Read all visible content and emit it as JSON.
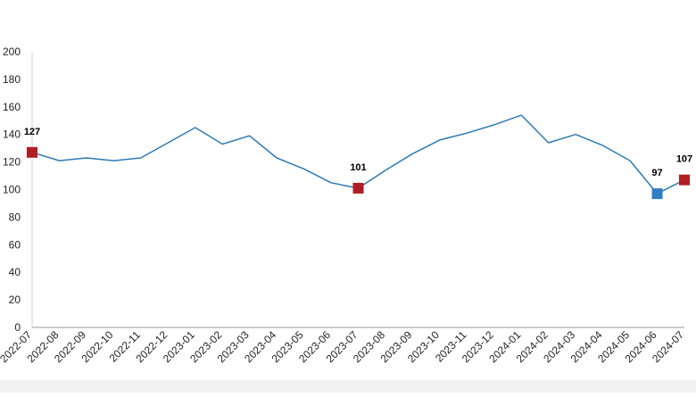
{
  "chart_data": {
    "type": "line",
    "title": "",
    "xlabel": "",
    "ylabel": "",
    "ylim": [
      0,
      200
    ],
    "yticks": [
      0,
      20,
      40,
      60,
      80,
      100,
      120,
      140,
      160,
      180,
      200
    ],
    "grid": false,
    "legend": "none",
    "categories": [
      "2022-07",
      "2022-08",
      "2022-09",
      "2022-10",
      "2022-11",
      "2022-12",
      "2023-01",
      "2023-02",
      "2023-03",
      "2023-04",
      "2023-05",
      "2023-06",
      "2023-07",
      "2023-08",
      "2023-09",
      "2023-10",
      "2023-11",
      "2023-12",
      "2024-01",
      "2024-02",
      "2024-03",
      "2024-04",
      "2024-05",
      "2024-06",
      "2024-07"
    ],
    "series": [
      {
        "values": [
          127,
          121,
          123,
          121,
          123,
          134,
          145,
          133,
          139,
          123,
          115,
          105,
          101,
          114,
          126,
          136,
          141,
          147,
          154,
          134,
          140,
          132,
          121,
          97,
          107
        ],
        "color": "#2e7ab3"
      }
    ],
    "highlights": [
      {
        "index": 0,
        "label": "127",
        "color": "#b01e23"
      },
      {
        "index": 12,
        "label": "101",
        "color": "#b01e23"
      },
      {
        "index": 23,
        "label": "97",
        "color": "#2f7dc2"
      },
      {
        "index": 24,
        "label": "107",
        "color": "#b01e23"
      }
    ]
  }
}
